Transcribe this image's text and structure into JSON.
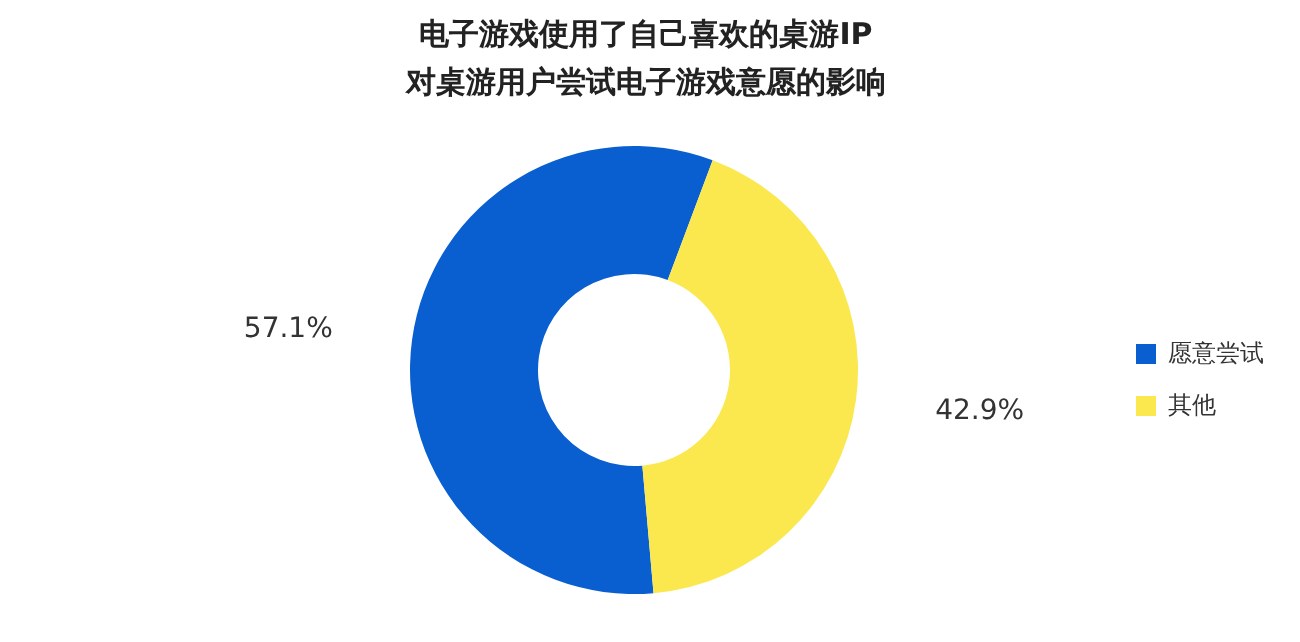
{
  "chart_data": {
    "type": "donut",
    "title": "电子游戏使用了自己喜欢的桌游IP\n对桌游用户尝试电子游戏意愿的影响",
    "categories": [
      "愿意尝试",
      "其他"
    ],
    "values": [
      57.1,
      42.9
    ],
    "colors": [
      "#0a5fd0",
      "#fae84e"
    ],
    "value_labels": [
      "57.1%",
      "42.9%"
    ],
    "legend": "right"
  }
}
